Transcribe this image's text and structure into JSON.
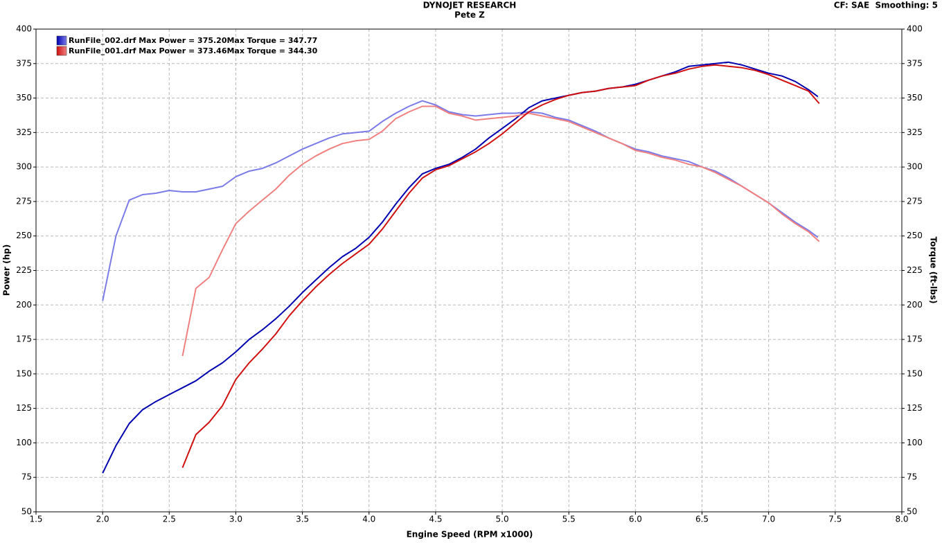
{
  "chart_data": {
    "type": "line",
    "title": "DYNOJET RESEARCH",
    "subtitle": "Pete Z",
    "corner_note": "CF: SAE  Smoothing: 5",
    "x_label": "Engine Speed (RPM x1000)",
    "y_label": "Power (hp)",
    "y2_label": "Torque (ft-lbs)",
    "xlim": [
      1.5,
      8.0
    ],
    "xticks": [
      {
        "value": 1.5,
        "label": "1.5"
      },
      {
        "value": 2.0,
        "label": "2.0"
      },
      {
        "value": 2.5,
        "label": "2.5"
      },
      {
        "value": 3.0,
        "label": "3.0"
      },
      {
        "value": 3.5,
        "label": "3.5"
      },
      {
        "value": 4.0,
        "label": "4.0"
      },
      {
        "value": 4.5,
        "label": "4.5"
      },
      {
        "value": 5.0,
        "label": "5.0"
      },
      {
        "value": 5.5,
        "label": "5.5"
      },
      {
        "value": 6.0,
        "label": "6.0"
      },
      {
        "value": 6.5,
        "label": "6.5"
      },
      {
        "value": 7.0,
        "label": "7.0"
      },
      {
        "value": 7.5,
        "label": "7.5"
      },
      {
        "value": 8.0,
        "label": "8.0"
      }
    ],
    "ylim": [
      50,
      400
    ],
    "yticks": [
      50,
      75,
      100,
      125,
      150,
      175,
      200,
      225,
      250,
      275,
      300,
      325,
      350,
      375,
      400
    ],
    "y2lim": [
      50,
      400
    ],
    "y2ticks": [
      50,
      75,
      100,
      125,
      150,
      175,
      200,
      225,
      250,
      275,
      300,
      325,
      350,
      375,
      400
    ],
    "grid": true,
    "legend": "top-left",
    "runs": [
      {
        "name": "RunFile_002.drf Max Power = 375.20Max Torque = 347.77",
        "power_color": "#0000b0",
        "torque_color": "#7b7be8",
        "x": [
          2.0,
          2.1,
          2.2,
          2.3,
          2.4,
          2.5,
          2.6,
          2.7,
          2.8,
          2.9,
          3.0,
          3.1,
          3.2,
          3.3,
          3.4,
          3.5,
          3.6,
          3.7,
          3.8,
          3.9,
          4.0,
          4.1,
          4.2,
          4.3,
          4.4,
          4.5,
          4.6,
          4.7,
          4.8,
          4.9,
          5.0,
          5.1,
          5.2,
          5.3,
          5.4,
          5.5,
          5.6,
          5.7,
          5.8,
          5.9,
          6.0,
          6.1,
          6.2,
          6.3,
          6.4,
          6.5,
          6.6,
          6.7,
          6.8,
          6.9,
          7.0,
          7.1,
          7.2,
          7.3,
          7.37
        ],
        "power": [
          78,
          98,
          114,
          124,
          130,
          135,
          140,
          145,
          152,
          158,
          166,
          175,
          182,
          190,
          199,
          209,
          218,
          227,
          235,
          241,
          249,
          260,
          273,
          285,
          295,
          299,
          302,
          307,
          313,
          321,
          328,
          335,
          343,
          348,
          350,
          352,
          354,
          355,
          357,
          358,
          360,
          363,
          366,
          369,
          373,
          374,
          375,
          376,
          374,
          371,
          368,
          366,
          362,
          356,
          351
        ],
        "torque": [
          203,
          250,
          276,
          280,
          281,
          283,
          282,
          282,
          284,
          286,
          293,
          297,
          299,
          303,
          308,
          313,
          317,
          321,
          324,
          325,
          326,
          333,
          339,
          344,
          348,
          345,
          340,
          338,
          337,
          338,
          339,
          339,
          340,
          339,
          336,
          334,
          330,
          326,
          321,
          317,
          313,
          311,
          308,
          306,
          304,
          300,
          297,
          292,
          286,
          280,
          274,
          267,
          260,
          254,
          249
        ]
      },
      {
        "name": "RunFile_001.drf Max Power = 373.46Max Torque = 344.30",
        "power_color": "#d01010",
        "torque_color": "#f08080",
        "x": [
          2.6,
          2.7,
          2.8,
          2.9,
          3.0,
          3.1,
          3.2,
          3.3,
          3.4,
          3.5,
          3.6,
          3.7,
          3.8,
          3.9,
          4.0,
          4.1,
          4.2,
          4.3,
          4.4,
          4.5,
          4.6,
          4.7,
          4.8,
          4.9,
          5.0,
          5.1,
          5.2,
          5.3,
          5.4,
          5.5,
          5.6,
          5.7,
          5.8,
          5.9,
          6.0,
          6.1,
          6.2,
          6.3,
          6.4,
          6.5,
          6.6,
          6.7,
          6.8,
          6.9,
          7.0,
          7.1,
          7.2,
          7.3,
          7.38
        ],
        "power": [
          82,
          106,
          115,
          127,
          146,
          158,
          168,
          179,
          192,
          203,
          213,
          222,
          230,
          237,
          244,
          255,
          268,
          281,
          292,
          298,
          301,
          306,
          311,
          317,
          324,
          332,
          340,
          345,
          349,
          352,
          354,
          355,
          357,
          358,
          359,
          363,
          366,
          368,
          371,
          373,
          374,
          373,
          372,
          370,
          367,
          363,
          359,
          355,
          346
        ],
        "torque": [
          163,
          212,
          220,
          240,
          259,
          268,
          276,
          284,
          294,
          302,
          308,
          313,
          317,
          319,
          320,
          326,
          335,
          340,
          344,
          344,
          339,
          337,
          334,
          335,
          336,
          337,
          339,
          337,
          335,
          333,
          329,
          325,
          321,
          317,
          312,
          310,
          307,
          305,
          302,
          300,
          296,
          291,
          286,
          280,
          274,
          266,
          259,
          253,
          246
        ]
      }
    ]
  }
}
